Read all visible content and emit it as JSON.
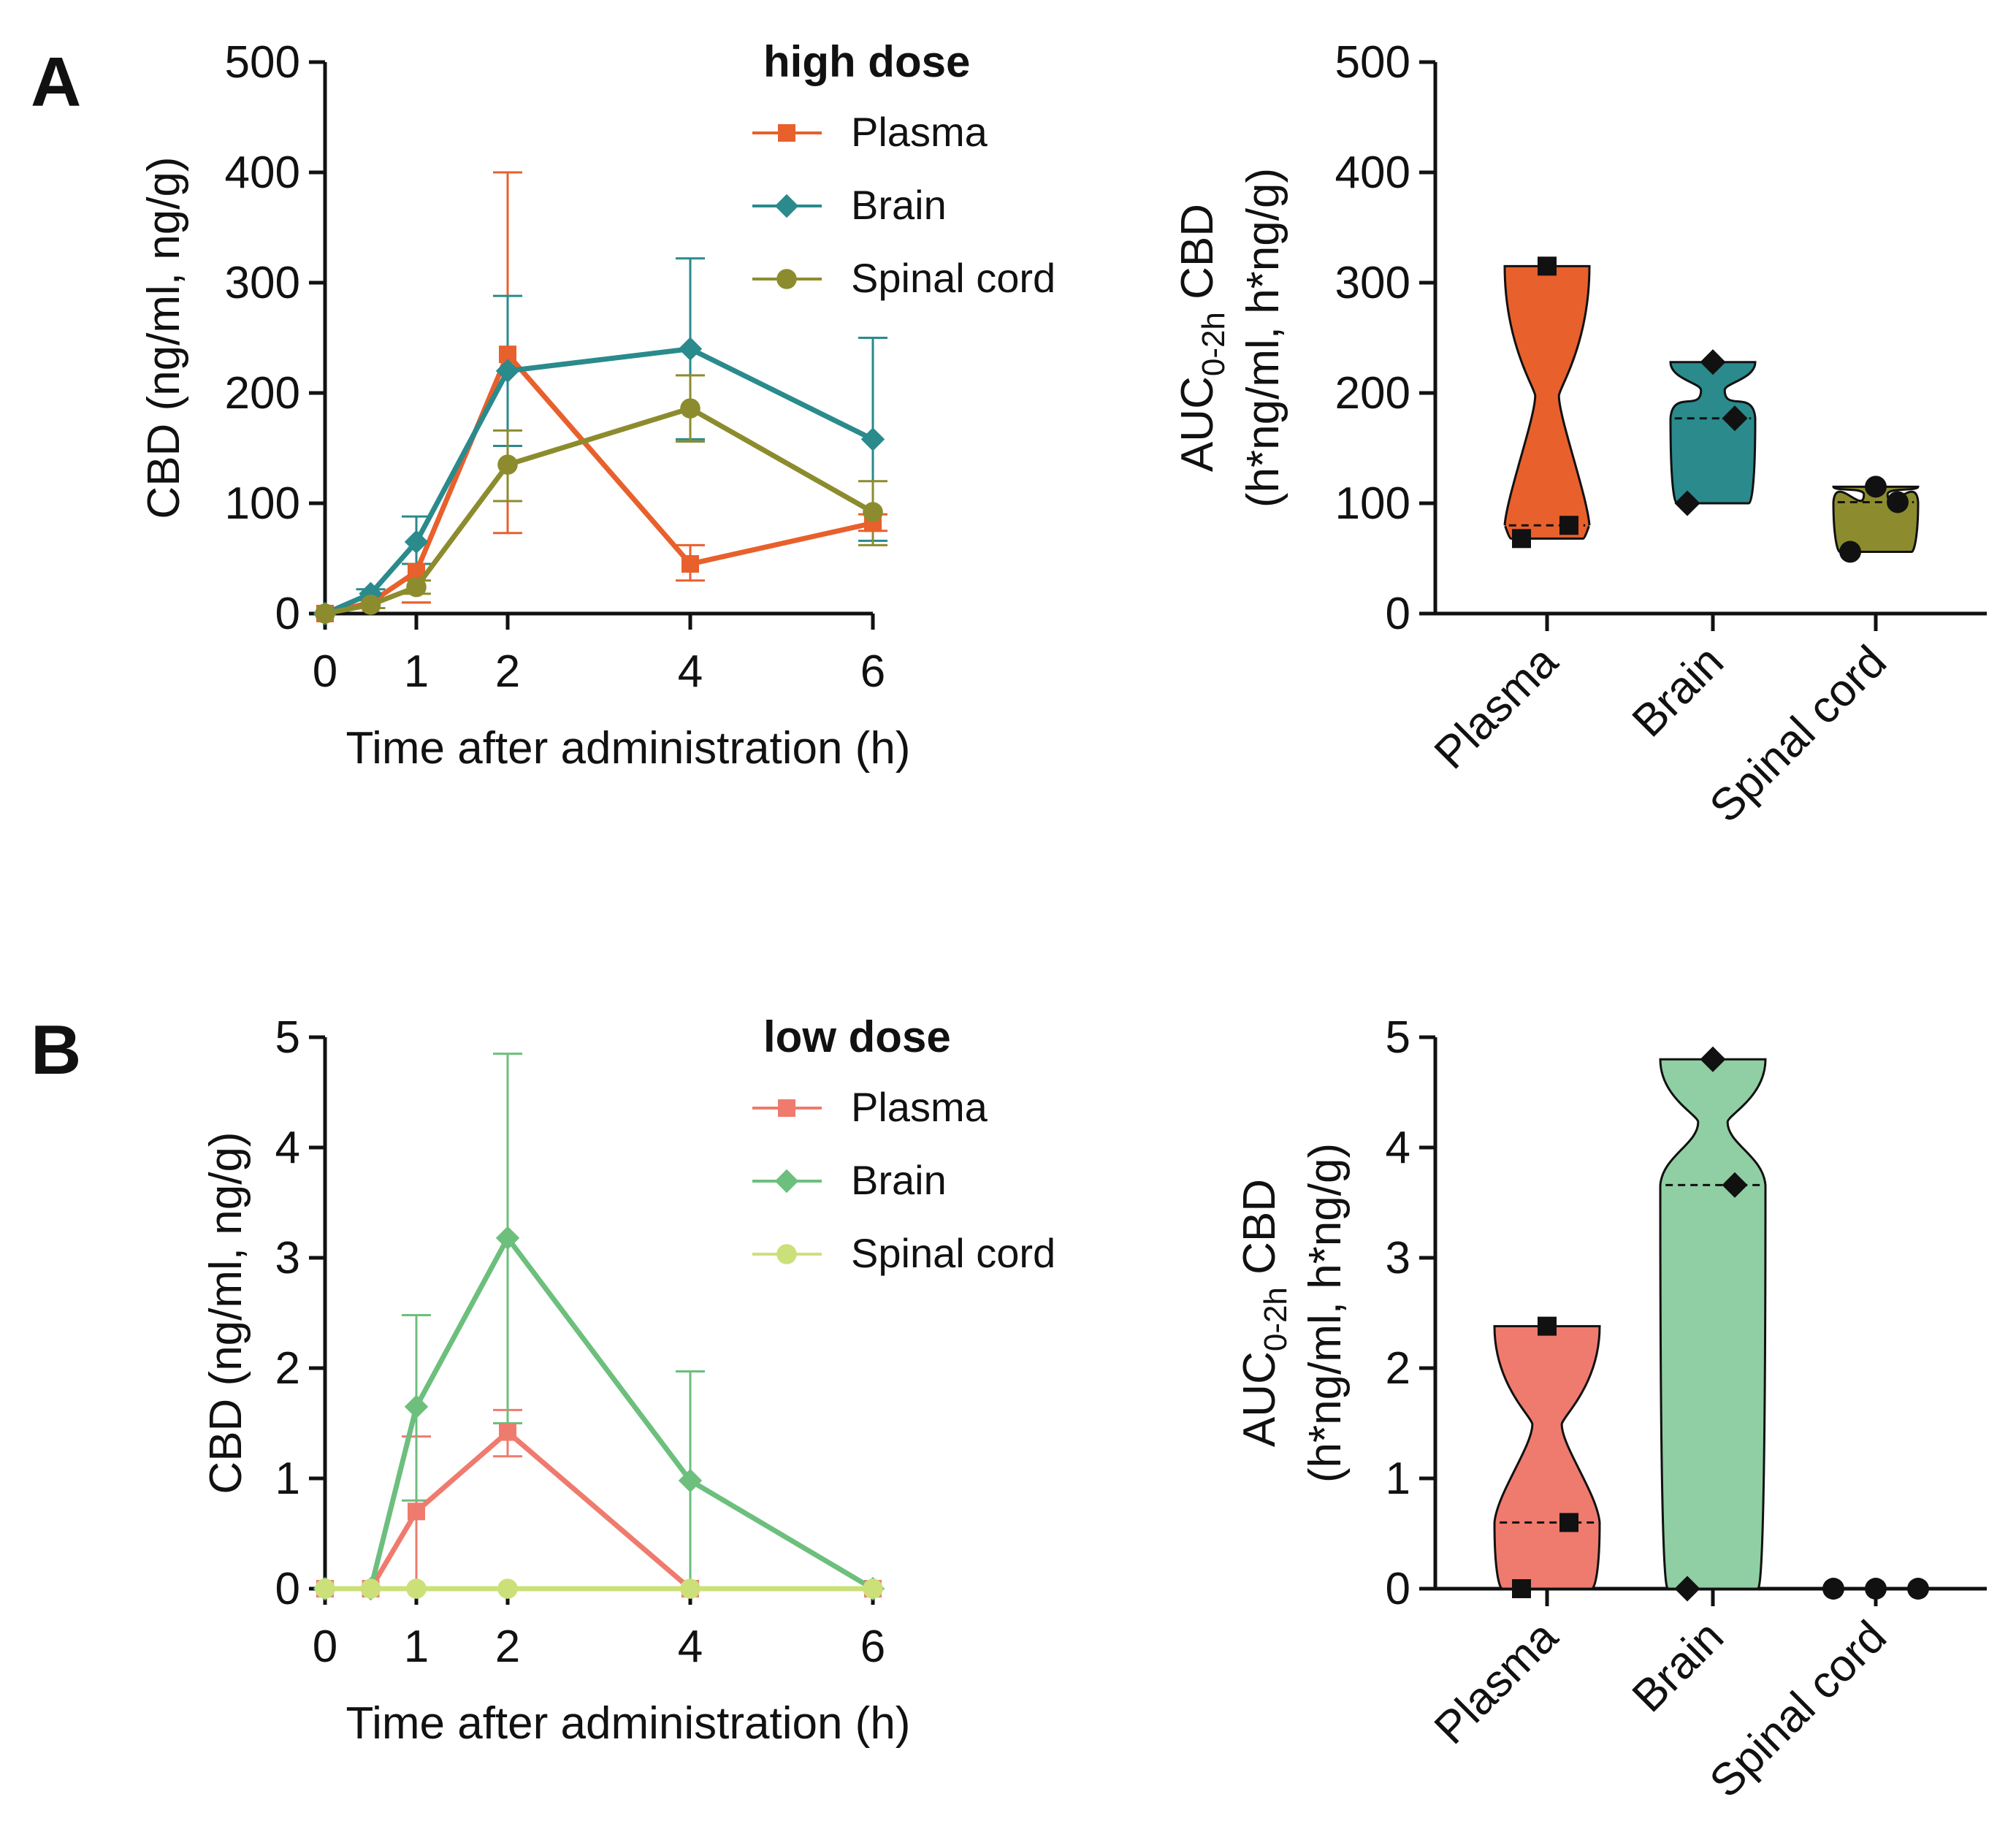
{
  "panels": [
    {
      "letter": "A"
    },
    {
      "letter": "B"
    }
  ],
  "chart_data": [
    {
      "type": "line",
      "panel": "A",
      "legend_title": "high dose",
      "xlabel": "Time after administration (h)",
      "ylabel": "CBD (ng/ml, ng/g)",
      "xlim": [
        0,
        6
      ],
      "ylim": [
        0,
        500
      ],
      "xticks": [
        0,
        1,
        2,
        4,
        6
      ],
      "xtick_labels": [
        "0",
        "1",
        "2",
        "4",
        "6"
      ],
      "yticks": [
        0,
        100,
        200,
        300,
        400,
        500
      ],
      "ytick_labels": [
        "0",
        "100",
        "200",
        "300",
        "400",
        "500"
      ],
      "legend_position": "top-right",
      "series": [
        {
          "name": "Plasma",
          "color": "#e8602c",
          "marker": "square",
          "x": [
            0,
            0.5,
            1,
            2,
            4,
            6
          ],
          "y": [
            0,
            10,
            38,
            235,
            45,
            82
          ],
          "err_upper": [
            0,
            5,
            10,
            400,
            62,
            90
          ],
          "err_lower": [
            0,
            5,
            10,
            73,
            30,
            75
          ]
        },
        {
          "name": "Brain",
          "color": "#2a8a8c",
          "marker": "diamond",
          "x": [
            0,
            0.5,
            1,
            2,
            4,
            6
          ],
          "y": [
            0,
            18,
            65,
            220,
            240,
            158
          ],
          "err_upper": [
            0,
            22,
            88,
            288,
            322,
            250
          ],
          "err_lower": [
            0,
            14,
            45,
            152,
            158,
            66
          ]
        },
        {
          "name": "Spinal cord",
          "color": "#8c8c2e",
          "marker": "circle",
          "x": [
            0,
            0.5,
            1,
            2,
            4,
            6
          ],
          "y": [
            0,
            8,
            24,
            135,
            186,
            92
          ],
          "err_upper": [
            0,
            12,
            30,
            166,
            216,
            120
          ],
          "err_lower": [
            0,
            5,
            18,
            102,
            156,
            62
          ]
        }
      ]
    },
    {
      "type": "violin",
      "panel": "A",
      "ylabel_main": "AUC",
      "ylabel_sub": "0-2h",
      "ylabel_rest": " CBD",
      "ylabel_line2": "(h*ng/ml, h*ng/g)",
      "ylim": [
        0,
        500
      ],
      "yticks": [
        0,
        100,
        200,
        300,
        400,
        500
      ],
      "ytick_labels": [
        "0",
        "100",
        "200",
        "300",
        "400",
        "500"
      ],
      "categories": [
        "Plasma",
        "Brain",
        "Spinal cord"
      ],
      "groups": [
        {
          "name": "Plasma",
          "color": "#e8602c",
          "marker": "square",
          "points": [
            315,
            80,
            68
          ],
          "median": 80
        },
        {
          "name": "Brain",
          "color": "#2a8a8c",
          "marker": "diamond",
          "points": [
            228,
            177,
            100
          ],
          "median": 177
        },
        {
          "name": "Spinal cord",
          "color": "#8c8c2e",
          "marker": "circle",
          "points": [
            115,
            101,
            56
          ],
          "median": 101
        }
      ]
    },
    {
      "type": "line",
      "panel": "B",
      "legend_title": "low dose",
      "xlabel": "Time after administration (h)",
      "ylabel": "CBD (ng/ml, ng/g)",
      "xlim": [
        0,
        6
      ],
      "ylim": [
        0,
        5
      ],
      "xticks": [
        0,
        1,
        2,
        4,
        6
      ],
      "xtick_labels": [
        "0",
        "1",
        "2",
        "4",
        "6"
      ],
      "yticks": [
        0,
        1,
        2,
        3,
        4,
        5
      ],
      "ytick_labels": [
        "0",
        "1",
        "2",
        "3",
        "4",
        "5"
      ],
      "legend_position": "top-right",
      "series": [
        {
          "name": "Plasma",
          "color": "#ef7b6e",
          "marker": "square",
          "x": [
            0,
            0.5,
            1,
            2,
            4,
            6
          ],
          "y": [
            0,
            0,
            0.7,
            1.42,
            0,
            0
          ],
          "err_upper": [
            0,
            0,
            1.38,
            1.62,
            0,
            0
          ],
          "err_lower": [
            0,
            0,
            0,
            1.2,
            0,
            0
          ]
        },
        {
          "name": "Brain",
          "color": "#6cbf7c",
          "marker": "diamond",
          "x": [
            0,
            0.5,
            1,
            2,
            4,
            6
          ],
          "y": [
            0,
            0,
            1.65,
            3.18,
            0.98,
            0
          ],
          "err_upper": [
            0,
            0,
            2.48,
            4.85,
            1.97,
            0
          ],
          "err_lower": [
            0,
            0,
            0.8,
            1.5,
            0,
            0
          ]
        },
        {
          "name": "Spinal cord",
          "color": "#cce07a",
          "marker": "circle",
          "x": [
            0,
            0.5,
            1,
            2,
            4,
            6
          ],
          "y": [
            0,
            0,
            0,
            0,
            0,
            0
          ],
          "err_upper": [
            0,
            0,
            0,
            0,
            0,
            0
          ],
          "err_lower": [
            0,
            0,
            0,
            0,
            0,
            0
          ]
        }
      ]
    },
    {
      "type": "violin",
      "panel": "B",
      "ylabel_main": "AUC",
      "ylabel_sub": "0-2h",
      "ylabel_rest": " CBD",
      "ylabel_line2": "(h*ng/ml, h*ng/g)",
      "ylim": [
        0,
        5
      ],
      "yticks": [
        0,
        1,
        2,
        3,
        4,
        5
      ],
      "ytick_labels": [
        "0",
        "1",
        "2",
        "3",
        "4",
        "5"
      ],
      "categories": [
        "Plasma",
        "Brain",
        "Spinal cord"
      ],
      "groups": [
        {
          "name": "Plasma",
          "color": "#ef7b6e",
          "marker": "square",
          "points": [
            2.38,
            0.6,
            0
          ],
          "median": 0.6
        },
        {
          "name": "Brain",
          "color": "#8fcfa3",
          "marker": "diamond",
          "points": [
            4.8,
            3.66,
            0
          ],
          "median": 3.66
        },
        {
          "name": "Spinal cord",
          "color": "#111111",
          "marker": "circle",
          "points": [
            0,
            0,
            0
          ],
          "median": 0
        }
      ]
    }
  ]
}
